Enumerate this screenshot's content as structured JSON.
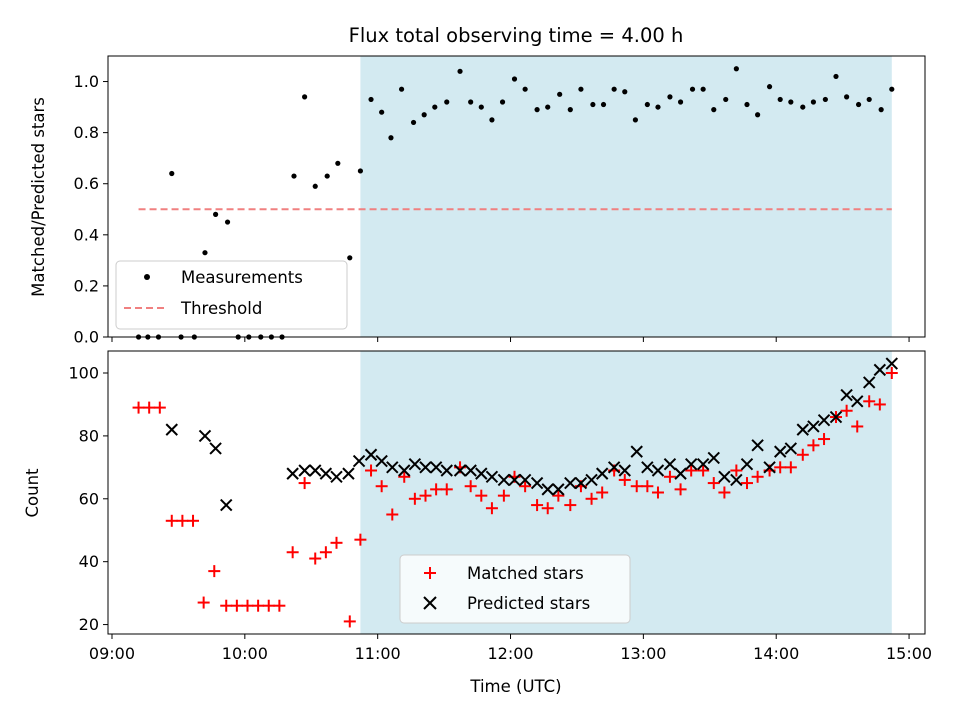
{
  "chart_data": {
    "title": "Flux total observing time = 4.00 h",
    "xlabel": "Time (UTC)",
    "x_ticks": [
      "09:00",
      "10:00",
      "11:00",
      "12:00",
      "13:00",
      "14:00",
      "15:00"
    ],
    "x_tick_hours": [
      9,
      10,
      11,
      12,
      13,
      14,
      15
    ],
    "xlim_hours": [
      8.97,
      15.12
    ],
    "shaded_span_hours": [
      10.87,
      14.87
    ],
    "shade_color": "#d3eaf1",
    "panels": [
      {
        "type": "scatter",
        "ylabel": "Matched/Predicted stars",
        "ylim": [
          0,
          1.1
        ],
        "y_ticks": [
          0.0,
          0.2,
          0.4,
          0.6,
          0.8,
          1.0
        ],
        "y_tick_labels": [
          "0.0",
          "0.2",
          "0.4",
          "0.6",
          "0.8",
          "1.0"
        ],
        "legend_location": "lower-left",
        "threshold": {
          "name": "Threshold",
          "value": 0.5,
          "x_range_hours": [
            9.2,
            14.87
          ],
          "color": "#f08080",
          "style": "dashed"
        },
        "series": [
          {
            "name": "Measurements",
            "marker": "dot",
            "color": "#000000",
            "x_hours": [
              9.2,
              9.27,
              9.35,
              9.45,
              9.52,
              9.62,
              9.7,
              9.78,
              9.87,
              9.95,
              10.03,
              10.12,
              10.2,
              10.28,
              10.37,
              10.45,
              10.53,
              10.62,
              10.7,
              10.79,
              10.87,
              10.95,
              11.03,
              11.1,
              11.18,
              11.27,
              11.35,
              11.43,
              11.52,
              11.62,
              11.7,
              11.78,
              11.86,
              11.94,
              12.03,
              12.11,
              12.2,
              12.28,
              12.37,
              12.45,
              12.53,
              12.62,
              12.7,
              12.78,
              12.86,
              12.94,
              13.03,
              13.11,
              13.2,
              13.28,
              13.37,
              13.45,
              13.53,
              13.62,
              13.7,
              13.78,
              13.86,
              13.95,
              14.03,
              14.11,
              14.2,
              14.28,
              14.37,
              14.45,
              14.53,
              14.62,
              14.7,
              14.79,
              14.87
            ],
            "y": [
              0.0,
              0.0,
              0.0,
              0.64,
              0.0,
              0.0,
              0.33,
              0.48,
              0.45,
              0.0,
              0.0,
              0.0,
              0.0,
              0.0,
              0.63,
              0.94,
              0.59,
              0.63,
              0.68,
              0.31,
              0.65,
              0.93,
              0.88,
              0.78,
              0.97,
              0.84,
              0.87,
              0.9,
              0.92,
              1.04,
              0.92,
              0.9,
              0.85,
              0.92,
              1.01,
              0.97,
              0.89,
              0.9,
              0.95,
              0.89,
              0.97,
              0.91,
              0.91,
              0.97,
              0.96,
              0.85,
              0.91,
              0.9,
              0.94,
              0.92,
              0.97,
              0.97,
              0.89,
              0.93,
              1.05,
              0.91,
              0.87,
              0.98,
              0.93,
              0.92,
              0.9,
              0.92,
              0.93,
              1.02,
              0.94,
              0.91,
              0.93,
              0.89,
              0.97
            ]
          }
        ]
      },
      {
        "type": "scatter",
        "ylabel": "Count",
        "ylim": [
          17,
          107
        ],
        "y_ticks": [
          20,
          40,
          60,
          80,
          100
        ],
        "y_tick_labels": [
          "20",
          "40",
          "60",
          "80",
          "100"
        ],
        "legend_location": "lower-center",
        "series": [
          {
            "name": "Matched stars",
            "marker": "plus",
            "color": "#ff0000",
            "x_hours": [
              9.2,
              9.28,
              9.36,
              9.45,
              9.53,
              9.61,
              9.69,
              9.77,
              9.86,
              9.94,
              10.02,
              10.1,
              10.18,
              10.26,
              10.36,
              10.45,
              10.53,
              10.61,
              10.69,
              10.79,
              10.87,
              10.95,
              11.03,
              11.11,
              11.2,
              11.28,
              11.36,
              11.44,
              11.52,
              11.62,
              11.7,
              11.78,
              11.86,
              11.95,
              12.03,
              12.11,
              12.2,
              12.28,
              12.36,
              12.45,
              12.53,
              12.61,
              12.69,
              12.78,
              12.86,
              12.95,
              13.03,
              13.11,
              13.2,
              13.28,
              13.36,
              13.45,
              13.53,
              13.61,
              13.7,
              13.78,
              13.86,
              13.95,
              14.03,
              14.11,
              14.2,
              14.28,
              14.36,
              14.45,
              14.53,
              14.61,
              14.7,
              14.78,
              14.87
            ],
            "y": [
              89,
              89,
              89,
              53,
              53,
              53,
              27,
              37,
              26,
              26,
              26,
              26,
              26,
              26,
              43,
              65,
              41,
              43,
              46,
              21,
              47,
              69,
              64,
              55,
              67,
              60,
              61,
              63,
              63,
              70,
              64,
              61,
              57,
              61,
              67,
              64,
              58,
              57,
              61,
              58,
              64,
              60,
              62,
              69,
              66,
              64,
              64,
              62,
              67,
              63,
              69,
              69,
              65,
              62,
              69,
              65,
              67,
              69,
              70,
              70,
              74,
              77,
              79,
              86,
              88,
              83,
              91,
              90,
              100
            ]
          },
          {
            "name": "Predicted stars",
            "marker": "x",
            "color": "#000000",
            "x_hours": [
              9.45,
              9.7,
              9.78,
              9.86,
              10.36,
              10.45,
              10.53,
              10.61,
              10.69,
              10.78,
              10.86,
              10.95,
              11.03,
              11.11,
              11.2,
              11.28,
              11.36,
              11.44,
              11.52,
              11.62,
              11.7,
              11.78,
              11.86,
              11.95,
              12.03,
              12.11,
              12.2,
              12.28,
              12.36,
              12.45,
              12.53,
              12.61,
              12.69,
              12.78,
              12.86,
              12.95,
              13.03,
              13.11,
              13.2,
              13.28,
              13.36,
              13.45,
              13.53,
              13.61,
              13.7,
              13.78,
              13.86,
              13.95,
              14.03,
              14.11,
              14.2,
              14.28,
              14.36,
              14.45,
              14.53,
              14.61,
              14.7,
              14.78,
              14.87
            ],
            "y": [
              82,
              80,
              76,
              58,
              68,
              69,
              69,
              68,
              67,
              68,
              72,
              74,
              72,
              70,
              69,
              71,
              70,
              70,
              69,
              69,
              69,
              68,
              67,
              66,
              66,
              66,
              65,
              63,
              63,
              65,
              65,
              66,
              68,
              70,
              69,
              75,
              70,
              69,
              71,
              68,
              71,
              71,
              73,
              67,
              66,
              71,
              77,
              70,
              75,
              76,
              82,
              83,
              85,
              86,
              93,
              91,
              97,
              101,
              103
            ]
          }
        ]
      }
    ]
  }
}
